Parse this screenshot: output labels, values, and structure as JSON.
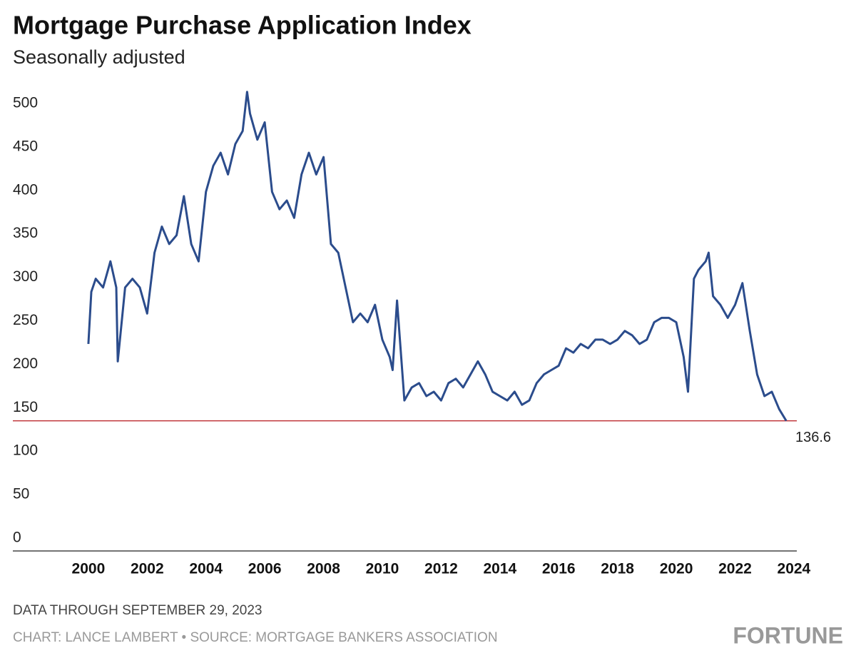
{
  "chart_data": {
    "type": "line",
    "title": "Mortgage Purchase Application Index",
    "subtitle": "Seasonally adjusted",
    "x": [
      2000.0,
      2000.1,
      2000.25,
      2000.5,
      2000.75,
      2000.95,
      2001.0,
      2001.25,
      2001.5,
      2001.75,
      2002.0,
      2002.25,
      2002.5,
      2002.75,
      2003.0,
      2003.25,
      2003.5,
      2003.75,
      2004.0,
      2004.25,
      2004.5,
      2004.75,
      2005.0,
      2005.25,
      2005.4,
      2005.5,
      2005.75,
      2006.0,
      2006.25,
      2006.5,
      2006.75,
      2007.0,
      2007.25,
      2007.5,
      2007.75,
      2008.0,
      2008.25,
      2008.5,
      2008.75,
      2009.0,
      2009.25,
      2009.5,
      2009.75,
      2010.0,
      2010.25,
      2010.35,
      2010.5,
      2010.75,
      2011.0,
      2011.25,
      2011.5,
      2011.75,
      2012.0,
      2012.25,
      2012.5,
      2012.75,
      2013.0,
      2013.25,
      2013.5,
      2013.75,
      2014.0,
      2014.25,
      2014.5,
      2014.75,
      2015.0,
      2015.25,
      2015.5,
      2015.75,
      2016.0,
      2016.25,
      2016.5,
      2016.75,
      2017.0,
      2017.25,
      2017.5,
      2017.75,
      2018.0,
      2018.25,
      2018.5,
      2018.75,
      2019.0,
      2019.25,
      2019.5,
      2019.75,
      2020.0,
      2020.25,
      2020.4,
      2020.6,
      2020.75,
      2021.0,
      2021.1,
      2021.25,
      2021.5,
      2021.75,
      2022.0,
      2022.25,
      2022.5,
      2022.75,
      2023.0,
      2023.25,
      2023.5,
      2023.74
    ],
    "series": [
      {
        "name": "Mortgage Purchase Application Index",
        "color": "#2b4c8c",
        "values": [
          225,
          285,
          300,
          290,
          320,
          290,
          205,
          290,
          300,
          290,
          260,
          330,
          360,
          340,
          350,
          395,
          340,
          320,
          400,
          430,
          445,
          420,
          455,
          470,
          515,
          490,
          460,
          480,
          400,
          380,
          390,
          370,
          420,
          445,
          420,
          440,
          340,
          330,
          290,
          250,
          260,
          250,
          270,
          230,
          210,
          195,
          275,
          160,
          175,
          180,
          165,
          170,
          160,
          180,
          185,
          175,
          190,
          205,
          190,
          170,
          165,
          160,
          170,
          155,
          160,
          180,
          190,
          195,
          200,
          220,
          215,
          225,
          220,
          230,
          230,
          225,
          230,
          240,
          235,
          225,
          230,
          250,
          255,
          255,
          250,
          210,
          170,
          300,
          310,
          320,
          330,
          280,
          270,
          255,
          270,
          295,
          240,
          190,
          165,
          170,
          150,
          136.6
        ]
      }
    ],
    "xlim": [
      1997.43,
      2024.1
    ],
    "ylim": [
      0,
      520
    ],
    "xticks": [
      2000,
      2002,
      2004,
      2006,
      2008,
      2010,
      2012,
      2014,
      2016,
      2018,
      2020,
      2022,
      2024
    ],
    "yticks": [
      0,
      50,
      100,
      150,
      200,
      250,
      300,
      350,
      400,
      450,
      500
    ],
    "reference_value": 136.6,
    "reference_color": "#c0353a",
    "note": "DATA THROUGH SEPTEMBER 29, 2023",
    "source": "CHART: LANCE LAMBERT • SOURCE: MORTGAGE BANKERS ASSOCIATION",
    "brand": "FORTUNE"
  }
}
